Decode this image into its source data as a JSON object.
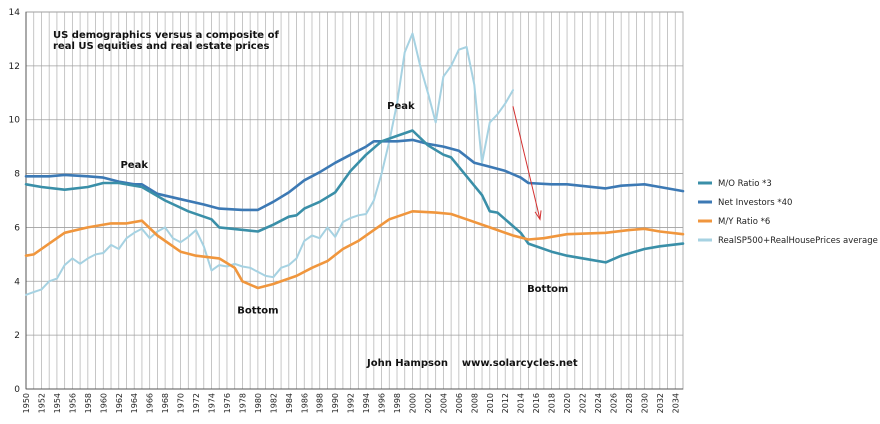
{
  "chart_data": {
    "type": "line",
    "title": "US demographics versus a composite of real US equities and real estate prices",
    "title_lines": [
      "US demographics versus a composite of",
      "real US equities and real estate prices"
    ],
    "credit": "John Hampson    www.solarcycles.net",
    "ylim": [
      0,
      14
    ],
    "xlim": [
      1950,
      2035
    ],
    "y_ticks": [
      0,
      2,
      4,
      6,
      8,
      10,
      12,
      14
    ],
    "x_tick_labels": [
      "1950",
      "1952",
      "1954",
      "1956",
      "1958",
      "1960",
      "1962",
      "1964",
      "1966",
      "1968",
      "1970",
      "1972",
      "1974",
      "1976",
      "1978",
      "1980",
      "1982",
      "1984",
      "1986",
      "1988",
      "1990",
      "1992",
      "1994",
      "1996",
      "1998",
      "2000",
      "2002",
      "2004",
      "2006",
      "2008",
      "2010",
      "2012",
      "2014",
      "2016",
      "2018",
      "2020",
      "2022",
      "2024",
      "2026",
      "2028",
      "2030",
      "2032",
      "2034"
    ],
    "grid": "vertical lines every year, horizontal lines at major ticks",
    "legend_position": "right",
    "annotations": [
      {
        "text": "Peak",
        "x": 1964,
        "y": 8.2
      },
      {
        "text": "Peak",
        "x": 1998.5,
        "y": 10.4
      },
      {
        "text": "Bottom",
        "x": 1980,
        "y": 2.8
      },
      {
        "text": "Bottom",
        "x": 2017.5,
        "y": 3.6
      }
    ],
    "arrow": {
      "from": [
        2013,
        10.5
      ],
      "to": [
        2016.5,
        6.3
      ],
      "color": "#d43030"
    },
    "series": [
      {
        "name": "M/O Ratio  *3",
        "color": "#3a8fa8",
        "points": [
          [
            1950,
            7.6
          ],
          [
            1952,
            7.5
          ],
          [
            1955,
            7.4
          ],
          [
            1958,
            7.5
          ],
          [
            1960,
            7.65
          ],
          [
            1962,
            7.65
          ],
          [
            1965,
            7.5
          ],
          [
            1968,
            7.0
          ],
          [
            1971,
            6.6
          ],
          [
            1974,
            6.3
          ],
          [
            1975,
            6.0
          ],
          [
            1980,
            5.85
          ],
          [
            1982,
            6.1
          ],
          [
            1984,
            6.4
          ],
          [
            1985,
            6.45
          ],
          [
            1986,
            6.7
          ],
          [
            1988,
            6.95
          ],
          [
            1990,
            7.3
          ],
          [
            1992,
            8.1
          ],
          [
            1994,
            8.7
          ],
          [
            1996,
            9.2
          ],
          [
            1998,
            9.4
          ],
          [
            2000,
            9.6
          ],
          [
            2002,
            9.05
          ],
          [
            2004,
            8.7
          ],
          [
            2005,
            8.6
          ],
          [
            2007,
            7.9
          ],
          [
            2009,
            7.2
          ],
          [
            2010,
            6.6
          ],
          [
            2011,
            6.55
          ],
          [
            2012,
            6.3
          ],
          [
            2014,
            5.8
          ],
          [
            2015,
            5.4
          ],
          [
            2018,
            5.1
          ],
          [
            2020,
            4.95
          ],
          [
            2023,
            4.8
          ],
          [
            2025,
            4.7
          ],
          [
            2027,
            4.95
          ],
          [
            2030,
            5.2
          ],
          [
            2032,
            5.3
          ],
          [
            2035,
            5.4
          ]
        ]
      },
      {
        "name": "Net Investors *40",
        "color": "#3c79b4",
        "points": [
          [
            1950,
            7.9
          ],
          [
            1953,
            7.9
          ],
          [
            1955,
            7.95
          ],
          [
            1958,
            7.9
          ],
          [
            1960,
            7.85
          ],
          [
            1962,
            7.7
          ],
          [
            1964,
            7.6
          ],
          [
            1965,
            7.6
          ],
          [
            1967,
            7.25
          ],
          [
            1970,
            7.05
          ],
          [
            1973,
            6.85
          ],
          [
            1975,
            6.7
          ],
          [
            1978,
            6.65
          ],
          [
            1980,
            6.65
          ],
          [
            1982,
            6.95
          ],
          [
            1984,
            7.3
          ],
          [
            1986,
            7.75
          ],
          [
            1988,
            8.05
          ],
          [
            1990,
            8.4
          ],
          [
            1992,
            8.7
          ],
          [
            1994,
            9.0
          ],
          [
            1995,
            9.2
          ],
          [
            1998,
            9.2
          ],
          [
            2000,
            9.25
          ],
          [
            2002,
            9.1
          ],
          [
            2004,
            9.0
          ],
          [
            2006,
            8.85
          ],
          [
            2008,
            8.4
          ],
          [
            2010,
            8.25
          ],
          [
            2012,
            8.1
          ],
          [
            2014,
            7.85
          ],
          [
            2015,
            7.65
          ],
          [
            2018,
            7.6
          ],
          [
            2020,
            7.6
          ],
          [
            2025,
            7.45
          ],
          [
            2027,
            7.55
          ],
          [
            2030,
            7.6
          ],
          [
            2032,
            7.5
          ],
          [
            2035,
            7.35
          ]
        ]
      },
      {
        "name": "M/Y Ratio  *6",
        "color": "#f0963d",
        "points": [
          [
            1950,
            4.95
          ],
          [
            1951,
            5.0
          ],
          [
            1953,
            5.4
          ],
          [
            1955,
            5.8
          ],
          [
            1958,
            6.0
          ],
          [
            1961,
            6.15
          ],
          [
            1963,
            6.15
          ],
          [
            1965,
            6.25
          ],
          [
            1967,
            5.7
          ],
          [
            1970,
            5.1
          ],
          [
            1972,
            4.95
          ],
          [
            1975,
            4.85
          ],
          [
            1977,
            4.5
          ],
          [
            1978,
            4.0
          ],
          [
            1980,
            3.75
          ],
          [
            1982,
            3.9
          ],
          [
            1985,
            4.2
          ],
          [
            1987,
            4.5
          ],
          [
            1989,
            4.75
          ],
          [
            1991,
            5.2
          ],
          [
            1993,
            5.5
          ],
          [
            1995,
            5.9
          ],
          [
            1997,
            6.3
          ],
          [
            2000,
            6.6
          ],
          [
            2003,
            6.55
          ],
          [
            2005,
            6.5
          ],
          [
            2007,
            6.3
          ],
          [
            2010,
            6.0
          ],
          [
            2013,
            5.7
          ],
          [
            2015,
            5.55
          ],
          [
            2017,
            5.6
          ],
          [
            2020,
            5.75
          ],
          [
            2025,
            5.8
          ],
          [
            2028,
            5.9
          ],
          [
            2030,
            5.95
          ],
          [
            2032,
            5.85
          ],
          [
            2035,
            5.75
          ]
        ]
      },
      {
        "name": "RealSP500+RealHousePrices average",
        "color": "#a6d2e2",
        "points": [
          [
            1950,
            3.5
          ],
          [
            1951,
            3.6
          ],
          [
            1952,
            3.7
          ],
          [
            1953,
            4.0
          ],
          [
            1954,
            4.1
          ],
          [
            1955,
            4.6
          ],
          [
            1956,
            4.85
          ],
          [
            1957,
            4.65
          ],
          [
            1958,
            4.85
          ],
          [
            1959,
            5.0
          ],
          [
            1960,
            5.05
          ],
          [
            1961,
            5.35
          ],
          [
            1962,
            5.2
          ],
          [
            1963,
            5.6
          ],
          [
            1964,
            5.8
          ],
          [
            1965,
            5.95
          ],
          [
            1966,
            5.6
          ],
          [
            1967,
            5.85
          ],
          [
            1968,
            6.0
          ],
          [
            1969,
            5.6
          ],
          [
            1970,
            5.45
          ],
          [
            1971,
            5.65
          ],
          [
            1972,
            5.9
          ],
          [
            1973,
            5.3
          ],
          [
            1974,
            4.4
          ],
          [
            1975,
            4.6
          ],
          [
            1976,
            4.55
          ],
          [
            1977,
            4.65
          ],
          [
            1978,
            4.55
          ],
          [
            1979,
            4.5
          ],
          [
            1980,
            4.35
          ],
          [
            1981,
            4.2
          ],
          [
            1982,
            4.15
          ],
          [
            1983,
            4.5
          ],
          [
            1984,
            4.6
          ],
          [
            1985,
            4.85
          ],
          [
            1986,
            5.5
          ],
          [
            1987,
            5.7
          ],
          [
            1988,
            5.6
          ],
          [
            1989,
            6.0
          ],
          [
            1990,
            5.65
          ],
          [
            1991,
            6.2
          ],
          [
            1992,
            6.35
          ],
          [
            1993,
            6.45
          ],
          [
            1994,
            6.5
          ],
          [
            1995,
            7.0
          ],
          [
            1996,
            8.0
          ],
          [
            1997,
            9.2
          ],
          [
            1998,
            10.6
          ],
          [
            1999,
            12.5
          ],
          [
            2000,
            13.2
          ],
          [
            2001,
            12.0
          ],
          [
            2002,
            11.0
          ],
          [
            2003,
            9.9
          ],
          [
            2004,
            11.6
          ],
          [
            2005,
            12.0
          ],
          [
            2006,
            12.6
          ],
          [
            2007,
            12.7
          ],
          [
            2008,
            11.3
          ],
          [
            2009,
            8.4
          ],
          [
            2010,
            9.9
          ],
          [
            2011,
            10.2
          ],
          [
            2012,
            10.6
          ],
          [
            2013,
            11.1
          ]
        ]
      }
    ]
  }
}
